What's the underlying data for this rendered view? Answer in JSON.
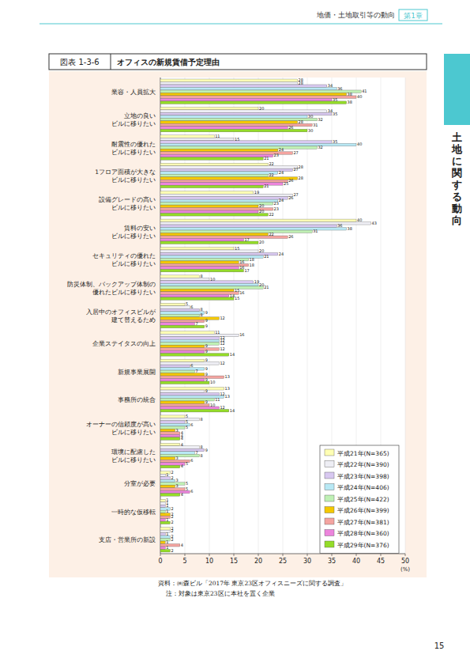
{
  "page": {
    "header": "地価・土地取引等の動向",
    "chapter": "第1章",
    "side_tab": "土地に関する動向",
    "page_number": "15"
  },
  "chart_data": {
    "type": "bar",
    "orientation": "horizontal",
    "figure_number": "図表 1-3-6",
    "title": "オフィスの新規賃借予定理由",
    "x_label": "(%)",
    "source": "資料：㈱森ビル「2017年 東京23区オフィスニーズに関する調査」",
    "note": "注：対象は東京23区に本社を置く企業",
    "categories": [
      "業容・人員拡大",
      "立地の良い\nビルに移りたい",
      "耐震性の優れた\nビルに移りたい",
      "1フロア面積が大きな\nビルに移りたい",
      "設備グレードの高い\nビルに移りたい",
      "賃料の安い\nビルに移りたい",
      "セキュリティの優れた\nビルに移りたい",
      "防災体制、バックアップ体制の\n優れたビルに移りたい",
      "入居中のオフィスビルが\n建て替えるため",
      "企業ステイタスの向上",
      "新規事業展開",
      "事務所の統合",
      "オーナーの信頼度が高い\nビルに移りたい",
      "環境に配慮した\nビルに移りたい",
      "分室が必要",
      "一時的な仮移転",
      "支店・営業所の新設"
    ],
    "series": [
      {
        "name": "平成21年(N=365)",
        "color": "#ffffb4",
        "values": [
          28,
          20,
          11,
          22,
          19,
          40,
          15,
          8,
          5,
          11,
          9,
          13,
          5,
          4,
          2,
          1,
          2
        ]
      },
      {
        "name": "平成22年(N=390)",
        "color": "#eeeef4",
        "values": [
          28,
          34,
          15,
          28,
          27,
          43,
          20,
          10,
          6,
          16,
          12,
          9,
          8,
          8,
          1,
          1,
          2
        ]
      },
      {
        "name": "平成23年(N=398)",
        "color": "#d8c8f0",
        "values": [
          34,
          35,
          35,
          27,
          26,
          36,
          24,
          19,
          8,
          12,
          6,
          12,
          5,
          9,
          2,
          1,
          1
        ]
      },
      {
        "name": "平成24年(N=406)",
        "color": "#b8e8f4",
        "values": [
          36,
          30,
          40,
          24,
          24,
          38,
          21,
          20,
          9,
          12,
          9,
          13,
          6,
          7,
          3,
          2,
          2
        ]
      },
      {
        "name": "平成25年(N=422)",
        "color": "#bff0b4",
        "values": [
          41,
          32,
          32,
          22,
          23,
          31,
          18,
          21,
          8,
          12,
          7,
          11,
          5,
          8,
          5,
          1,
          2
        ]
      },
      {
        "name": "平成26年(N=399)",
        "color": "#f4c800",
        "values": [
          38,
          28,
          24,
          28,
          20,
          22,
          16,
          15,
          12,
          9,
          9,
          9,
          3,
          3,
          3,
          2,
          1
        ]
      },
      {
        "name": "平成27年(N=381)",
        "color": "#f4a4a0",
        "values": [
          40,
          31,
          27,
          26,
          23,
          26,
          18,
          16,
          9,
          12,
          13,
          10,
          4,
          6,
          5,
          2,
          4
        ]
      },
      {
        "name": "平成28年(N=360)",
        "color": "#ec84dc",
        "values": [
          35,
          26,
          23,
          25,
          20,
          17,
          16,
          14,
          7,
          9,
          9,
          12,
          4,
          5,
          6,
          1,
          1
        ]
      },
      {
        "name": "平成29年(N=376)",
        "color": "#94dc28",
        "values": [
          38,
          30,
          21,
          21,
          22,
          20,
          17,
          15,
          9,
          14,
          10,
          14,
          4,
          4,
          4,
          2,
          2
        ]
      }
    ],
    "xlim": [
      0,
      50
    ],
    "xticks": [
      0,
      5,
      10,
      15,
      20,
      25,
      30,
      35,
      40,
      45,
      50
    ],
    "grid": true,
    "data_labels": true,
    "legend": "bottom-right"
  }
}
